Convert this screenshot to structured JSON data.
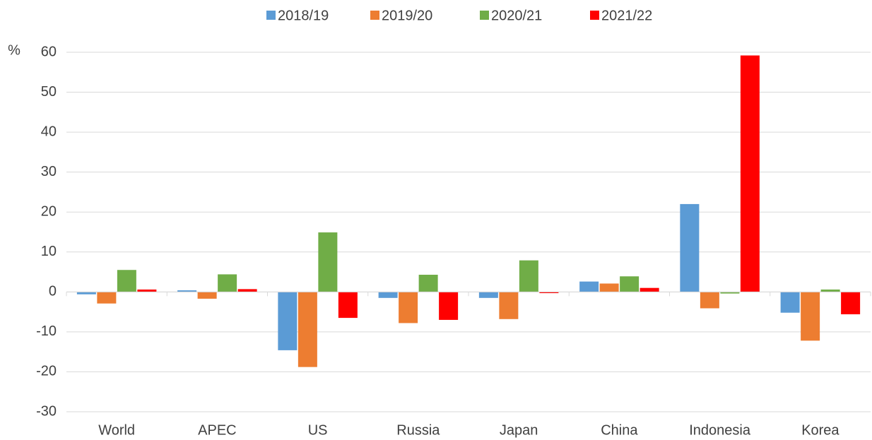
{
  "chart_data": {
    "type": "bar",
    "y_axis_label": "%",
    "categories": [
      "World",
      "APEC",
      "US",
      "Russia",
      "Japan",
      "China",
      "Indonesia",
      "Korea"
    ],
    "series": [
      {
        "name": "2018/19",
        "color": "#5b9bd5",
        "values": [
          -0.6,
          0.4,
          -14.6,
          -1.5,
          -1.5,
          2.6,
          22.0,
          -5.2
        ]
      },
      {
        "name": "2019/20",
        "color": "#ed7d31",
        "values": [
          -2.9,
          -1.7,
          -18.8,
          -7.8,
          -6.8,
          2.1,
          -4.1,
          -12.2
        ]
      },
      {
        "name": "2020/21",
        "color": "#70ad47",
        "values": [
          5.5,
          4.4,
          14.9,
          4.3,
          7.9,
          3.9,
          -0.4,
          0.6
        ]
      },
      {
        "name": "2021/22",
        "color": "#ff0000",
        "values": [
          0.6,
          0.7,
          -6.5,
          -7.0,
          -0.3,
          1.0,
          59.2,
          -5.6
        ]
      }
    ],
    "ylim": [
      -30,
      60
    ],
    "yticks": [
      -30,
      -20,
      -10,
      0,
      10,
      20,
      30,
      40,
      50,
      60
    ],
    "grid": true,
    "legend": "top"
  }
}
